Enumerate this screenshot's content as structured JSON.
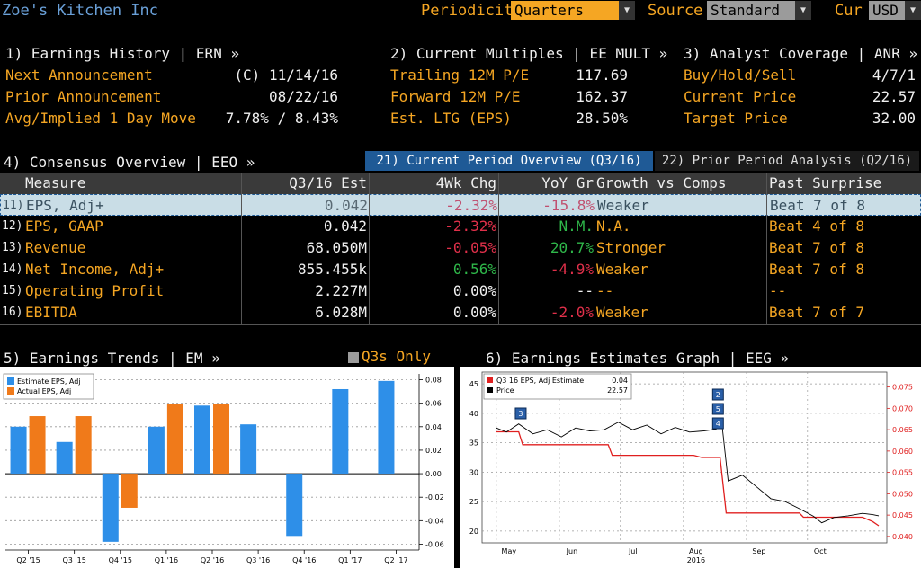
{
  "header": {
    "company": "Zoe's Kitchen Inc",
    "periodicity_label": "Periodicity",
    "periodicity_value": "Quarters",
    "source_label": "Source",
    "source_value": "Standard",
    "cur_label": "Cur",
    "cur_value": "USD"
  },
  "panels": {
    "earnings_history": {
      "title": "1) Earnings History | ERN »",
      "rows": [
        {
          "label": "Next Announcement",
          "value": "(C)  11/14/16"
        },
        {
          "label": "Prior Announcement",
          "value": "08/22/16"
        },
        {
          "label": "Avg/Implied 1 Day Move",
          "value": "7.78% / 8.43%"
        }
      ]
    },
    "current_multiples": {
      "title": "2) Current Multiples | EE MULT »",
      "rows": [
        {
          "label": "Trailing 12M P/E",
          "value": "117.69"
        },
        {
          "label": "Forward 12M P/E",
          "value": "162.37"
        },
        {
          "label": "Est. LTG (EPS)",
          "value": "28.50%"
        }
      ]
    },
    "analyst_coverage": {
      "title": "3) Analyst Coverage | ANR »",
      "rows": [
        {
          "label": "Buy/Hold/Sell",
          "value": "4/7/1"
        },
        {
          "label": "Current Price",
          "value": "22.57"
        },
        {
          "label": "Target Price",
          "value": "32.00"
        }
      ]
    }
  },
  "consensus": {
    "title": "4) Consensus Overview | EEO »",
    "tab_current": "21) Current Period Overview (Q3/16)",
    "tab_prior": "22) Prior Period Analysis (Q2/16)",
    "columns": [
      "Measure",
      "Q3/16 Est",
      "4Wk Chg",
      "YoY Gr",
      "Growth vs Comps",
      "Past Surprise"
    ],
    "rows": [
      {
        "num": "11)",
        "measure": "EPS, Adj+",
        "est": "0.042",
        "chg": "-2.32%",
        "chg_color": "#e0304a",
        "yoy": "-15.8%",
        "yoy_color": "#e0304a",
        "growth": "Weaker",
        "surprise": "Beat 7 of 8"
      },
      {
        "num": "12)",
        "measure": "EPS, GAAP",
        "est": "0.042",
        "chg": "-2.32%",
        "chg_color": "#e0304a",
        "yoy": "N.M.",
        "yoy_color": "#2fb84a",
        "growth": "N.A.",
        "surprise": "Beat 4 of 8"
      },
      {
        "num": "13)",
        "measure": "Revenue",
        "est": "68.050M",
        "chg": "-0.05%",
        "chg_color": "#e0304a",
        "yoy": "20.7%",
        "yoy_color": "#2fb84a",
        "growth": "Stronger",
        "surprise": "Beat 7 of 8"
      },
      {
        "num": "14)",
        "measure": "Net Income, Adj+",
        "est": "855.455k",
        "chg": "0.56%",
        "chg_color": "#2fb84a",
        "yoy": "-4.9%",
        "yoy_color": "#e0304a",
        "growth": "Weaker",
        "surprise": "Beat 7 of 8"
      },
      {
        "num": "15)",
        "measure": "Operating Profit",
        "est": "2.227M",
        "chg": "0.00%",
        "chg_color": "#f0f0f0",
        "yoy": "--",
        "yoy_color": "#f0f0f0",
        "growth": "--",
        "surprise": "--"
      },
      {
        "num": "16)",
        "measure": "EBITDA",
        "est": "6.028M",
        "chg": "0.00%",
        "chg_color": "#f0f0f0",
        "yoy": "-2.0%",
        "yoy_color": "#e0304a",
        "growth": "Weaker",
        "surprise": "Beat 7 of 7"
      }
    ]
  },
  "trends": {
    "title": "5) Earnings Trends | EM »",
    "toggle_label": "Q3s Only"
  },
  "estimates": {
    "title": "6) Earnings Estimates Graph | EEG »"
  },
  "colors": {
    "accent_orange": "#f5a623",
    "bar_blue": "#2e8fe8",
    "bar_orange": "#f07a1a",
    "est_line_red": "#e02020",
    "tab_active": "#1f5a96",
    "row_highlight": "#c9dde6"
  },
  "chart_data": [
    {
      "type": "bar",
      "categories": [
        "Q2 '15",
        "Q3 '15",
        "Q4 '15",
        "Q1 '16",
        "Q2 '16",
        "Q3 '16",
        "Q4 '16",
        "Q1 '17",
        "Q2 '17"
      ],
      "series": [
        {
          "name": "Estimate EPS, Adj",
          "values": [
            0.04,
            0.027,
            -0.058,
            0.04,
            0.058,
            0.042,
            -0.053,
            0.072,
            0.079
          ]
        },
        {
          "name": "Actual EPS, Adj",
          "values": [
            0.049,
            0.049,
            -0.029,
            0.059,
            0.059,
            null,
            null,
            null,
            null
          ]
        }
      ],
      "yticks": [
        "0.08",
        "0.06",
        "0.04",
        "0.02",
        "0.00",
        "-0.02",
        "-0.04",
        "-0.06"
      ],
      "ylim": [
        -0.065,
        0.085
      ]
    },
    {
      "type": "line",
      "legend": [
        {
          "name": "Q3 16 EPS, Adj Estimate",
          "value": "0.04"
        },
        {
          "name": "Price",
          "value": "22.57"
        }
      ],
      "x_labels": [
        "May",
        "Jun",
        "Jul",
        "Aug",
        "Sep",
        "Oct"
      ],
      "x_year": "2016",
      "left_ticks": [
        "45",
        "40",
        "35",
        "30",
        "25",
        "20"
      ],
      "right_ticks": [
        "0.075",
        "0.070",
        "0.065",
        "0.060",
        "0.055",
        "0.050",
        "0.045",
        "0.040"
      ],
      "left_ylim": [
        18,
        47
      ],
      "right_ylim": [
        0.0385,
        0.0785
      ],
      "markers": [
        "3",
        "2",
        "5",
        "4"
      ],
      "series": [
        {
          "name": "Q3 16 EPS, Adj Estimate",
          "points": [
            [
              "2016-05-01",
              0.0645
            ],
            [
              "2016-05-12",
              0.0645
            ],
            [
              "2016-05-14",
              0.0615
            ],
            [
              "2016-06-25",
              0.0615
            ],
            [
              "2016-06-27",
              0.059
            ],
            [
              "2016-08-06",
              0.059
            ],
            [
              "2016-08-10",
              0.0585
            ],
            [
              "2016-08-19",
              0.0585
            ],
            [
              "2016-08-22",
              0.0455
            ],
            [
              "2016-09-27",
              0.0455
            ],
            [
              "2016-09-29",
              0.0445
            ],
            [
              "2016-10-28",
              0.0445
            ],
            [
              "2016-11-02",
              0.0435
            ],
            [
              "2016-11-05",
              0.0425
            ]
          ]
        },
        {
          "name": "Price",
          "points": [
            [
              "2016-05-01",
              37.5
            ],
            [
              "2016-05-06",
              36.8
            ],
            [
              "2016-05-12",
              38.2
            ],
            [
              "2016-05-19",
              36.5
            ],
            [
              "2016-05-26",
              37.2
            ],
            [
              "2016-06-02",
              36.0
            ],
            [
              "2016-06-09",
              37.5
            ],
            [
              "2016-06-16",
              37.0
            ],
            [
              "2016-06-23",
              37.2
            ],
            [
              "2016-06-30",
              38.5
            ],
            [
              "2016-07-07",
              37.2
            ],
            [
              "2016-07-14",
              38.0
            ],
            [
              "2016-07-21",
              36.5
            ],
            [
              "2016-07-28",
              37.6
            ],
            [
              "2016-08-04",
              36.8
            ],
            [
              "2016-08-11",
              37.0
            ],
            [
              "2016-08-17",
              37.3
            ],
            [
              "2016-08-20",
              38.0
            ],
            [
              "2016-08-23",
              28.5
            ],
            [
              "2016-08-30",
              29.5
            ],
            [
              "2016-09-06",
              27.5
            ],
            [
              "2016-09-13",
              25.5
            ],
            [
              "2016-09-20",
              25.0
            ],
            [
              "2016-09-27",
              23.8
            ],
            [
              "2016-10-04",
              22.5
            ],
            [
              "2016-10-08",
              21.4
            ],
            [
              "2016-10-14",
              22.3
            ],
            [
              "2016-10-21",
              22.6
            ],
            [
              "2016-10-28",
              23.0
            ],
            [
              "2016-11-02",
              22.8
            ],
            [
              "2016-11-05",
              22.6
            ]
          ]
        }
      ]
    }
  ]
}
